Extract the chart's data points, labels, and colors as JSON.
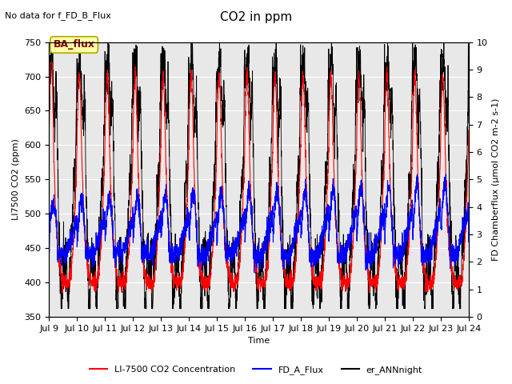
{
  "title": "CO2 in ppm",
  "top_left_note": "No data for f_FD_B_Flux",
  "box_label": "BA_flux",
  "ylabel_left": "LI7500 CO2 (ppm)",
  "ylabel_right": "FD Chamberflux (μmol CO2 m-2 s-1)",
  "xlabel": "Time",
  "ylim_left": [
    350,
    750
  ],
  "ylim_right": [
    0.0,
    10.0
  ],
  "yticks_left": [
    350,
    400,
    450,
    500,
    550,
    600,
    650,
    700,
    750
  ],
  "yticks_right": [
    0.0,
    1.0,
    2.0,
    3.0,
    4.0,
    5.0,
    6.0,
    7.0,
    8.0,
    9.0,
    10.0
  ],
  "xstart_day": 9,
  "xend_day": 24,
  "xtick_days": [
    9,
    10,
    11,
    12,
    13,
    14,
    15,
    16,
    17,
    18,
    19,
    20,
    21,
    22,
    23,
    24
  ],
  "n_points": 3000,
  "fig_bg_color": "#ffffff",
  "plot_bg_color": "#e8e8e8",
  "red_color": "#ff0000",
  "blue_color": "#0000ff",
  "black_color": "#000000",
  "legend_entries": [
    "LI-7500 CO2 Concentration",
    "FD_A_Flux",
    "er_ANNnight"
  ],
  "legend_colors": [
    "#ff0000",
    "#0000ff",
    "#000000"
  ],
  "title_fontsize": 11,
  "label_fontsize": 8,
  "tick_fontsize": 8,
  "note_fontsize": 8,
  "box_facecolor": "#ffffaa",
  "box_edgecolor": "#aaaa00"
}
